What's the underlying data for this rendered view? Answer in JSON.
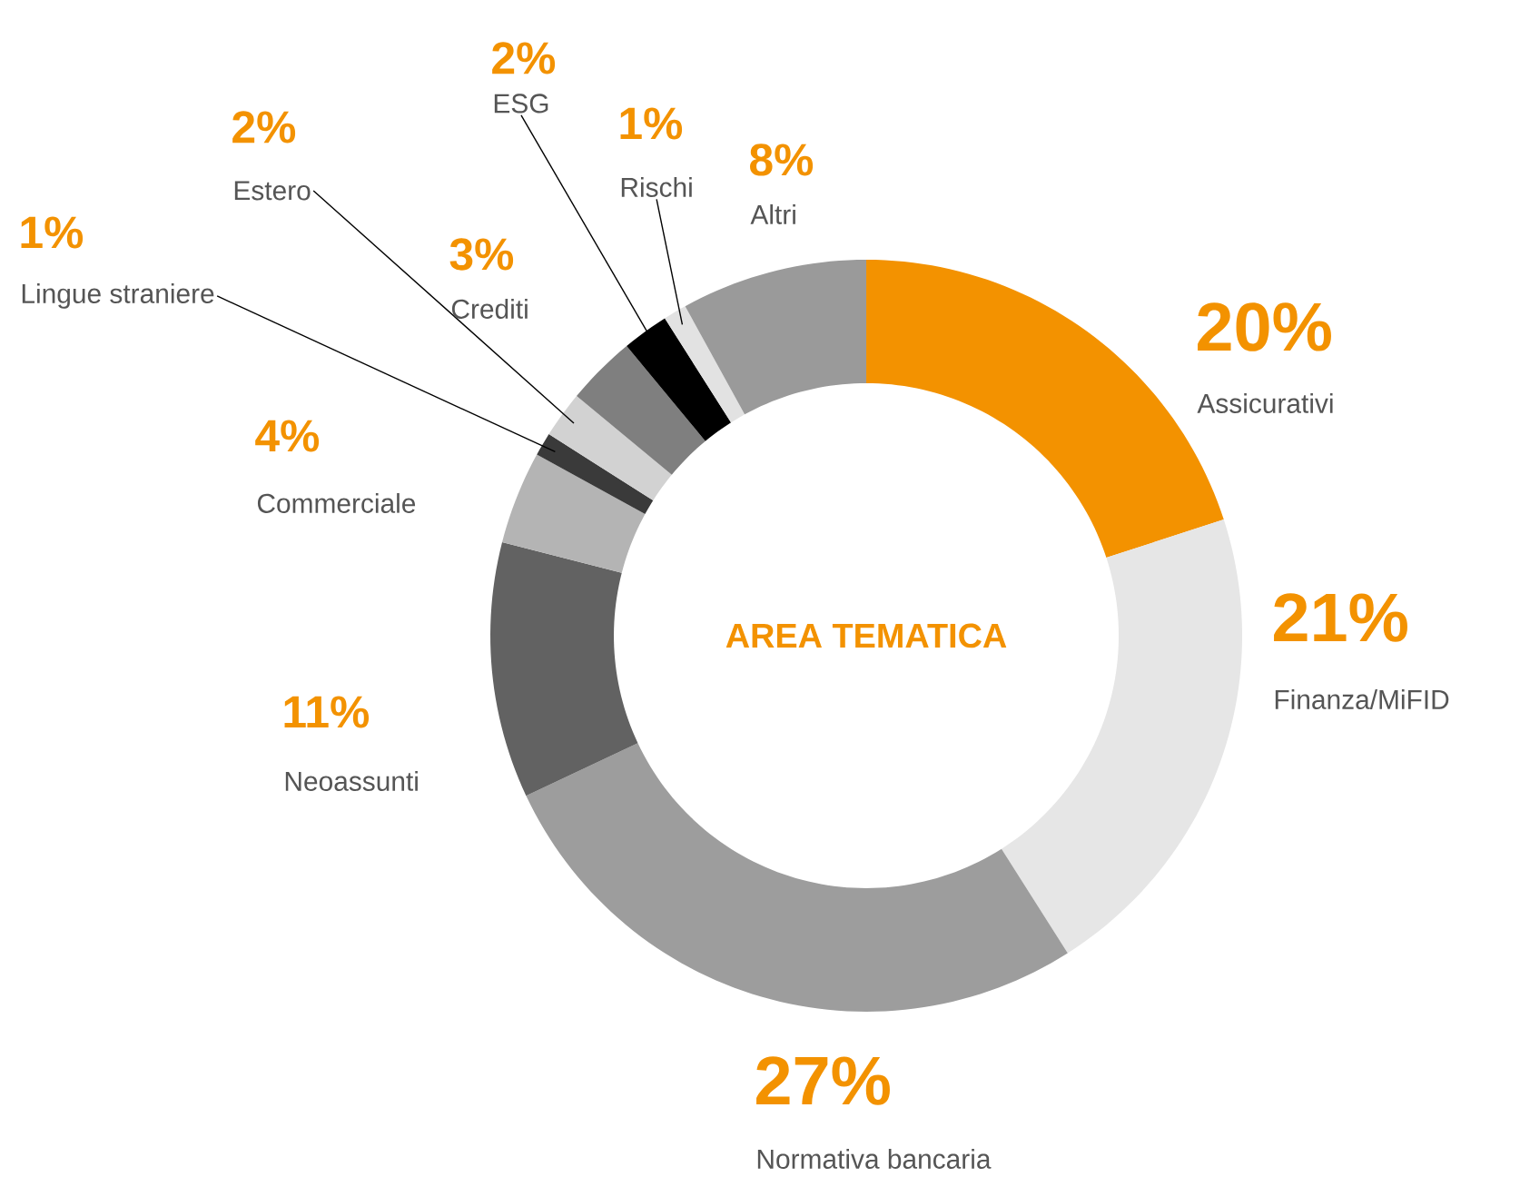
{
  "chart_data": {
    "type": "donut",
    "title": "AREA TEMATICA",
    "categories": [
      "Assicurativi",
      "Finanza/MiFID",
      "Normativa bancaria",
      "Neoassunti",
      "Commerciale",
      "Lingue straniere",
      "Estero",
      "Crediti",
      "ESG",
      "Rischi",
      "Altri"
    ],
    "values": [
      20,
      21,
      27,
      11,
      4,
      1,
      2,
      3,
      2,
      1,
      8
    ],
    "value_labels": [
      "20%",
      "21%",
      "27%",
      "11%",
      "4%",
      "1%",
      "2%",
      "3%",
      "2%",
      "1%",
      "8%"
    ],
    "colors": [
      "#f39200",
      "#e6e6e6",
      "#9d9d9d",
      "#626262",
      "#b4b4b4",
      "#3a3a3a",
      "#d2d2d2",
      "#7f7f7f",
      "#000000",
      "#e2e2e2",
      "#9a9a9a"
    ]
  }
}
